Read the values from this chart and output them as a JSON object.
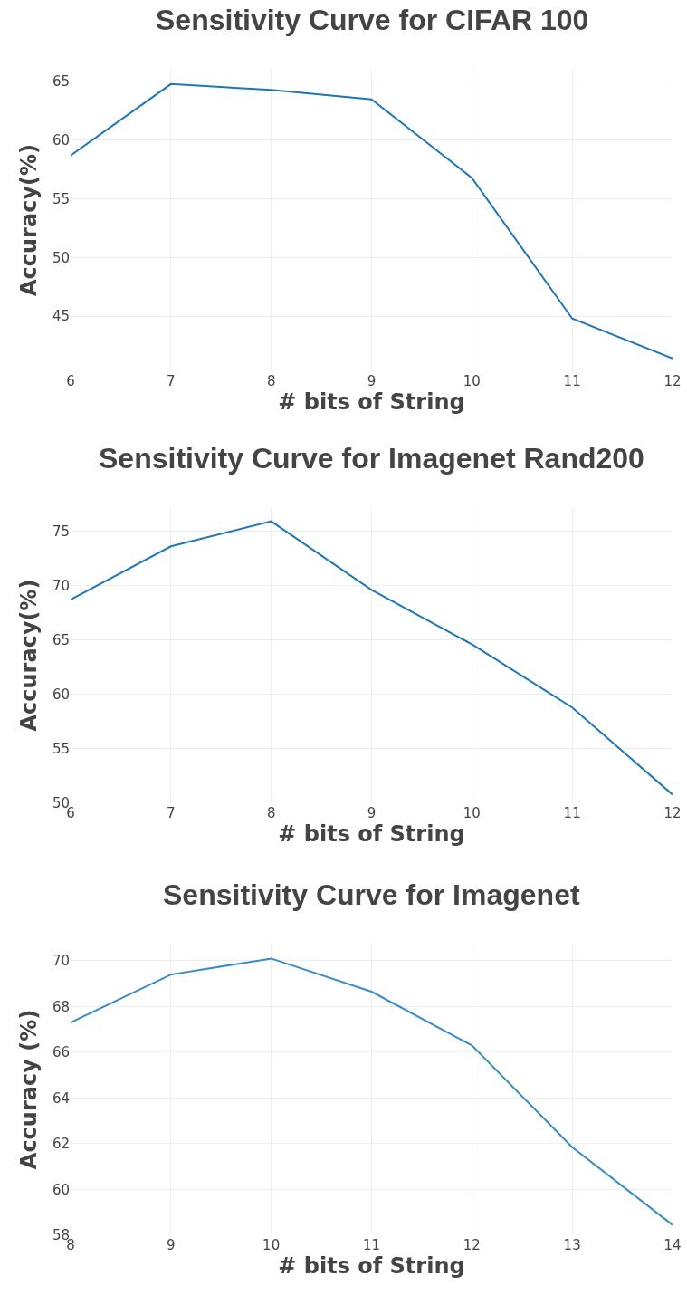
{
  "chart_data": [
    {
      "type": "line",
      "title": "Sensitivity Curve for CIFAR 100",
      "xlabel": "# bits of String",
      "ylabel": "Accuracy(%)",
      "x": [
        6,
        7,
        8,
        9,
        10,
        11,
        12
      ],
      "series": [
        {
          "color": "#1f77b4",
          "values": [
            58.7,
            64.8,
            64.3,
            63.5,
            56.8,
            44.8,
            41.4
          ]
        }
      ],
      "xlim": [
        6,
        12
      ],
      "xticks": [
        6,
        7,
        8,
        9,
        10,
        11,
        12
      ],
      "ylim": [
        40.3,
        66.1
      ],
      "yticks": [
        45,
        50,
        55,
        60,
        65
      ],
      "grid": true,
      "marker": "none",
      "line_style": "solid"
    },
    {
      "type": "line",
      "title": "Sensitivity Curve for Imagenet Rand200",
      "xlabel": "# bits of String",
      "ylabel": "Accuracy(%)",
      "x": [
        6,
        7,
        8,
        9,
        10,
        11,
        12
      ],
      "series": [
        {
          "color": "#1f77b4",
          "values": [
            68.7,
            73.6,
            75.9,
            69.6,
            64.6,
            58.8,
            50.8
          ]
        }
      ],
      "xlim": [
        6,
        12
      ],
      "xticks": [
        6,
        7,
        8,
        9,
        10,
        11,
        12
      ],
      "ylim": [
        50,
        77.2
      ],
      "yticks": [
        50,
        55,
        60,
        65,
        70,
        75
      ],
      "grid": true,
      "marker": "none",
      "line_style": "solid"
    },
    {
      "type": "line",
      "title": "Sensitivity Curve for Imagenet",
      "xlabel": "# bits of String",
      "ylabel": "Accuracy (%)",
      "x": [
        8,
        9,
        10,
        11,
        12,
        13,
        14
      ],
      "series": [
        {
          "color": "#3a8cc6",
          "values": [
            67.3,
            69.4,
            70.1,
            68.65,
            66.3,
            61.85,
            58.45
          ]
        }
      ],
      "xlim": [
        8,
        14
      ],
      "xticks": [
        8,
        9,
        10,
        11,
        12,
        13,
        14
      ],
      "ylim": [
        58,
        70.75
      ],
      "yticks": [
        58,
        60,
        62,
        64,
        66,
        68,
        70
      ],
      "grid": true,
      "marker": "none",
      "line_style": "solid"
    }
  ]
}
